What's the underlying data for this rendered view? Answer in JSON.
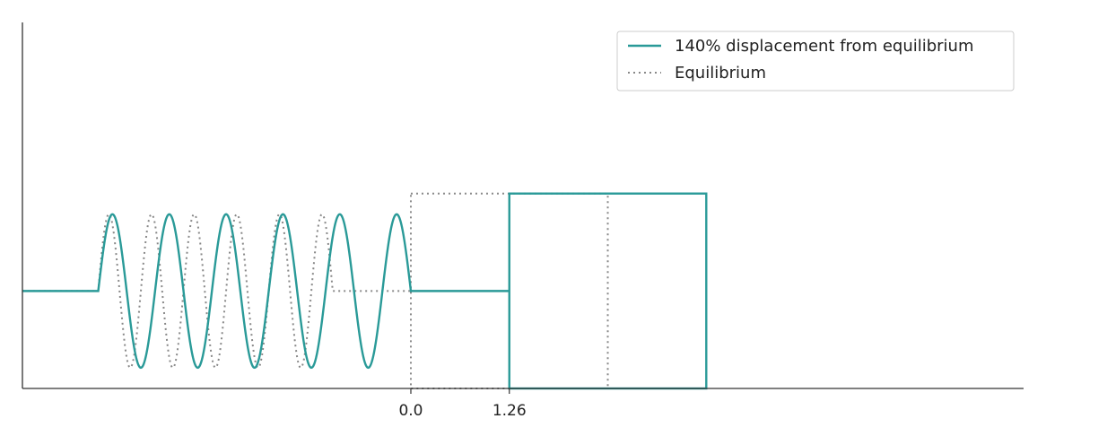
{
  "chart_data": {
    "type": "line",
    "title": "",
    "xlabel": "",
    "ylabel": "",
    "xlim": [
      -4.97,
      7.84
    ],
    "ylim": [
      -1.27,
      3.5
    ],
    "grid": false,
    "legend_placement": "top-right",
    "x_ticks": [
      {
        "value": 0.0,
        "label": "0.0"
      },
      {
        "value": 1.26,
        "label": "1.26"
      }
    ],
    "series": [
      {
        "name": "140% displacement from equilibrium",
        "color": "#2a9a98",
        "style": "solid",
        "rest_level": 0,
        "amplitude": 1,
        "wire_start_x": -4.97,
        "spring_start_x": -4.0,
        "spring_cycles": 5.5,
        "spring_end_x": 0.0,
        "lead_end_x": 0.27,
        "block_x": [
          1.26,
          3.78
        ],
        "block_y": [
          -1.27,
          1.27
        ]
      },
      {
        "name": "Equilibrium",
        "color": "#888888",
        "style": "dotted",
        "rest_level": 0,
        "amplitude": 1,
        "wire_start_x": -4.97,
        "spring_start_x": -4.0,
        "spring_cycles": 5.5,
        "spring_end_x": -1.0,
        "lead_end_x": 0.0,
        "block_x": [
          0.0,
          2.52
        ],
        "block_y": [
          -1.27,
          1.27
        ]
      }
    ]
  }
}
